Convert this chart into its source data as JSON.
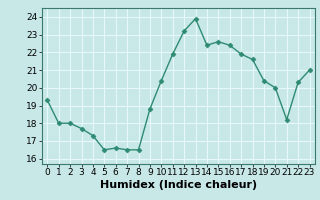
{
  "x": [
    0,
    1,
    2,
    3,
    4,
    5,
    6,
    7,
    8,
    9,
    10,
    11,
    12,
    13,
    14,
    15,
    16,
    17,
    18,
    19,
    20,
    21,
    22,
    23
  ],
  "y": [
    19.3,
    18.0,
    18.0,
    17.7,
    17.3,
    16.5,
    16.6,
    16.5,
    16.5,
    18.8,
    20.4,
    21.9,
    23.2,
    23.9,
    22.4,
    22.6,
    22.4,
    21.9,
    21.6,
    20.4,
    20.0,
    18.2,
    20.3,
    21.0
  ],
  "line_color": "#2e8b72",
  "marker": "D",
  "marker_size": 2.5,
  "linewidth": 1.0,
  "xlabel": "Humidex (Indice chaleur)",
  "xlim": [
    -0.5,
    23.5
  ],
  "ylim": [
    15.7,
    24.5
  ],
  "yticks": [
    16,
    17,
    18,
    19,
    20,
    21,
    22,
    23,
    24
  ],
  "xticks": [
    0,
    1,
    2,
    3,
    4,
    5,
    6,
    7,
    8,
    9,
    10,
    11,
    12,
    13,
    14,
    15,
    16,
    17,
    18,
    19,
    20,
    21,
    22,
    23
  ],
  "bg_color": "#c8e8e8",
  "grid_color": "#e8f8f8",
  "tick_fontsize": 6.5,
  "xlabel_fontsize": 8
}
